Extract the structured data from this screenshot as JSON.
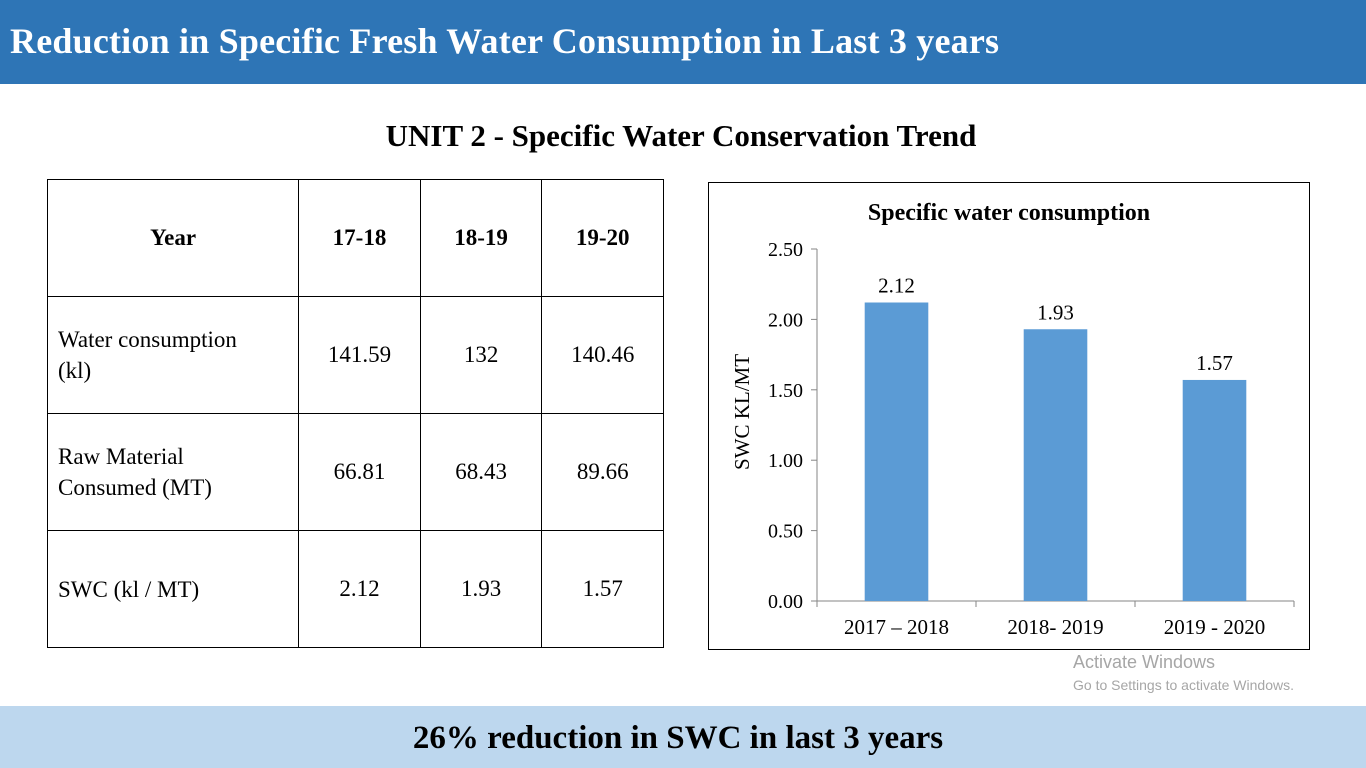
{
  "header": {
    "title": "Reduction in Specific Fresh Water Consumption  in Last 3 years"
  },
  "subtitle": "UNIT 2 - Specific Water Conservation Trend",
  "table": {
    "header_label": "Year",
    "years": [
      "17-18",
      "18-19",
      "19-20"
    ],
    "rows": [
      {
        "label_lines": [
          "Water consumption",
          "(kl)"
        ],
        "values": [
          "141.59",
          "132",
          "140.46"
        ]
      },
      {
        "label_lines": [
          "Raw Material",
          "Consumed (MT)"
        ],
        "values": [
          "66.81",
          "68.43",
          "89.66"
        ]
      },
      {
        "label_lines": [
          "SWC (kl / MT)"
        ],
        "values": [
          "2.12",
          "1.93",
          "1.57"
        ]
      }
    ]
  },
  "chart_data": {
    "type": "bar",
    "title": "Specific water consumption",
    "ylabel": "SWC KL/MT",
    "xlabel": "",
    "categories": [
      "2017 – 2018",
      "2018- 2019",
      "2019 - 2020"
    ],
    "values": [
      2.12,
      1.93,
      1.57
    ],
    "data_labels": [
      "2.12",
      "1.93",
      "1.57"
    ],
    "ylim": [
      0,
      2.5
    ],
    "yticks": [
      0,
      0.5,
      1.0,
      1.5,
      2.0,
      2.5
    ],
    "ytick_labels": [
      "0.00",
      "0.50",
      "1.00",
      "1.50",
      "2.00",
      "2.50"
    ],
    "grid": false,
    "legend": "none",
    "bar_color": "#5b9bd5"
  },
  "watermark": {
    "line1": "Activate Windows",
    "line2": "Go to Settings to activate Windows."
  },
  "footer": {
    "text": "26% reduction in SWC in last 3 years"
  },
  "colors": {
    "header_bg": "#2e75b6",
    "footer_bg": "#bdd7ee"
  }
}
